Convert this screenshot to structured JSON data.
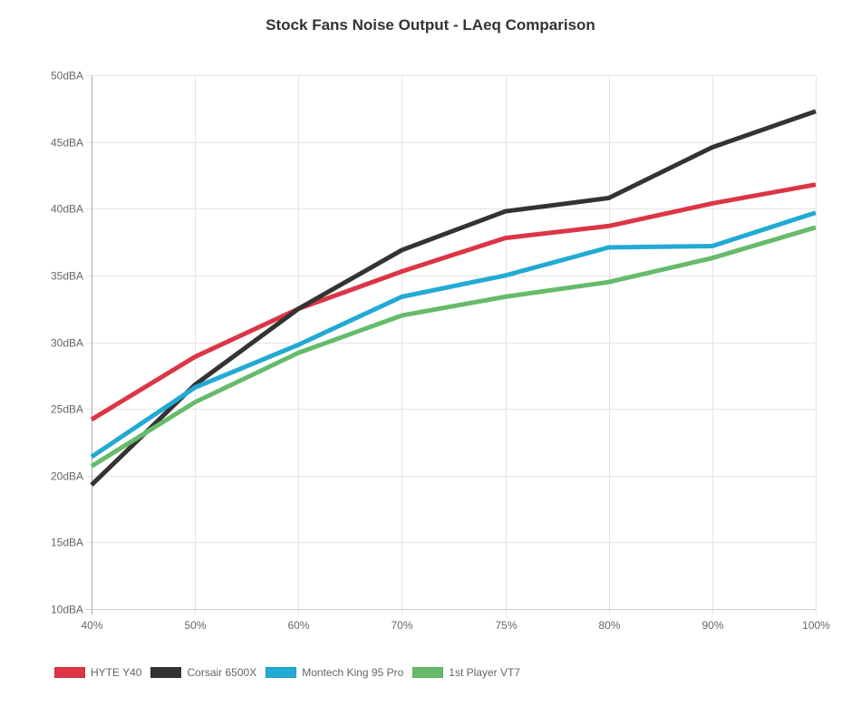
{
  "chart_data": {
    "type": "line",
    "title": "Stock Fans Noise Output - LAeq Comparison",
    "xlabel": "",
    "ylabel": "",
    "categories": [
      "40%",
      "50%",
      "60%",
      "70%",
      "75%",
      "80%",
      "90%",
      "100%"
    ],
    "ylim": [
      10,
      50
    ],
    "y_ticks": [
      10,
      15,
      20,
      25,
      30,
      35,
      40,
      45,
      50
    ],
    "y_tick_labels": [
      "10dBA",
      "15dBA",
      "20dBA",
      "25dBA",
      "30dBA",
      "35dBA",
      "40dBA",
      "45dBA",
      "50dBA"
    ],
    "grid": true,
    "legend_position": "bottom-left",
    "series": [
      {
        "name": "HYTE Y40",
        "color": "#dc3545",
        "values": [
          24.2,
          28.9,
          32.5,
          35.3,
          37.8,
          38.7,
          40.4,
          41.8
        ]
      },
      {
        "name": "Corsair 6500X",
        "color": "#333333",
        "values": [
          19.3,
          26.8,
          32.5,
          36.9,
          39.8,
          40.8,
          44.6,
          47.3
        ]
      },
      {
        "name": "Montech King 95 Pro",
        "color": "#22aad4",
        "values": [
          21.4,
          26.6,
          29.8,
          33.4,
          35.0,
          37.1,
          37.2,
          39.7
        ]
      },
      {
        "name": "1st Player VT7",
        "color": "#66bb6a",
        "values": [
          20.7,
          25.5,
          29.2,
          32.0,
          33.4,
          34.5,
          36.3,
          38.6
        ]
      }
    ]
  }
}
